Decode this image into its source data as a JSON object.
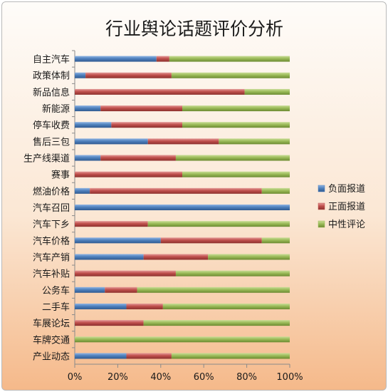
{
  "chart_data": {
    "type": "bar",
    "stacked": "percent",
    "orientation": "horizontal",
    "title": "行业舆论话题评价分析",
    "categories": [
      "自主汽车",
      "政策体制",
      "新品信息",
      "新能源",
      "停车收费",
      "售后三包",
      "生产线渠道",
      "赛事",
      "燃油价格",
      "汽车召回",
      "汽车下乡",
      "汽车价格",
      "汽车产销",
      "汽车补贴",
      "公务车",
      "二手车",
      "车展论坛",
      "车牌交通",
      "产业动态"
    ],
    "series": [
      {
        "name": "负面报道",
        "color": "#4f81bd",
        "values": [
          0.38,
          0.05,
          0.0,
          0.12,
          0.17,
          0.34,
          0.12,
          0.0,
          0.07,
          1.0,
          0.0,
          0.4,
          0.32,
          0.0,
          0.14,
          0.24,
          0.0,
          0.0,
          0.24
        ]
      },
      {
        "name": "正面报道",
        "color": "#c0504d",
        "values": [
          0.06,
          0.4,
          0.79,
          0.38,
          0.33,
          0.33,
          0.35,
          0.5,
          0.8,
          0.0,
          0.34,
          0.47,
          0.3,
          0.47,
          0.15,
          0.17,
          0.32,
          0.0,
          0.21
        ]
      },
      {
        "name": "中性评论",
        "color": "#9bbb59",
        "values": [
          0.56,
          0.55,
          0.21,
          0.5,
          0.5,
          0.33,
          0.53,
          0.5,
          0.13,
          0.0,
          0.66,
          0.13,
          0.38,
          0.53,
          0.71,
          0.59,
          0.68,
          1.0,
          0.55
        ]
      }
    ],
    "x_ticks": [
      "0%",
      "20%",
      "40%",
      "60%",
      "80%",
      "100%"
    ],
    "xlim": [
      0,
      1
    ],
    "grid": false,
    "legend_position": "right"
  }
}
